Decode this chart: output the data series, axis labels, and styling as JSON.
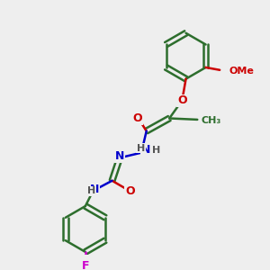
{
  "background_color": "#eeeeee",
  "bond_color": "#2d6e2d",
  "bond_lw": 1.8,
  "atom_colors": {
    "O": "#cc0000",
    "N": "#0000cc",
    "F": "#cc00cc",
    "C": "#2d6e2d",
    "H": "#555555"
  },
  "font_size": 9,
  "font_size_small": 8
}
